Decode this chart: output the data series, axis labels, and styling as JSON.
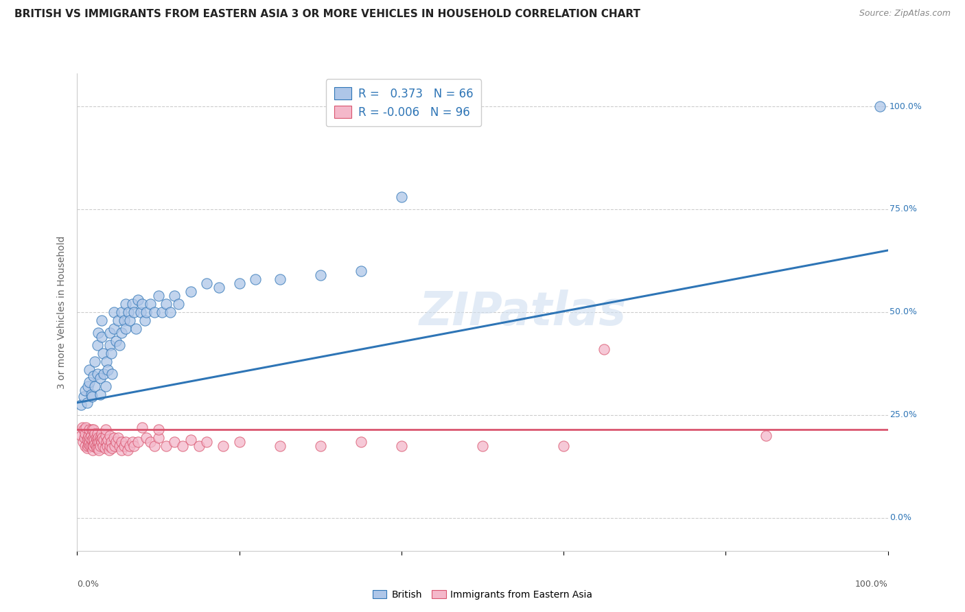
{
  "title": "BRITISH VS IMMIGRANTS FROM EASTERN ASIA 3 OR MORE VEHICLES IN HOUSEHOLD CORRELATION CHART",
  "source": "Source: ZipAtlas.com",
  "ylabel": "3 or more Vehicles in Household",
  "watermark": "ZIPatlas",
  "legend_top": {
    "british": {
      "R": 0.373,
      "N": 66,
      "color": "#aec6e8",
      "line_color": "#2e75b6"
    },
    "eastern_asia": {
      "R": -0.006,
      "N": 96,
      "color": "#f4b8ca",
      "line_color": "#d9546e"
    }
  },
  "ytick_labels": [
    "0.0%",
    "25.0%",
    "50.0%",
    "75.0%",
    "100.0%"
  ],
  "ytick_values": [
    0.0,
    0.25,
    0.5,
    0.75,
    1.0
  ],
  "xlim": [
    0.0,
    1.0
  ],
  "ylim": [
    -0.08,
    1.08
  ],
  "background_color": "#ffffff",
  "grid_color": "#cccccc",
  "title_fontsize": 11,
  "british_scatter": [
    [
      0.005,
      0.275
    ],
    [
      0.008,
      0.295
    ],
    [
      0.01,
      0.31
    ],
    [
      0.012,
      0.28
    ],
    [
      0.013,
      0.32
    ],
    [
      0.015,
      0.36
    ],
    [
      0.015,
      0.33
    ],
    [
      0.017,
      0.3
    ],
    [
      0.018,
      0.295
    ],
    [
      0.02,
      0.345
    ],
    [
      0.022,
      0.38
    ],
    [
      0.022,
      0.32
    ],
    [
      0.025,
      0.35
    ],
    [
      0.025,
      0.42
    ],
    [
      0.026,
      0.45
    ],
    [
      0.028,
      0.34
    ],
    [
      0.028,
      0.3
    ],
    [
      0.03,
      0.48
    ],
    [
      0.03,
      0.44
    ],
    [
      0.032,
      0.4
    ],
    [
      0.033,
      0.35
    ],
    [
      0.035,
      0.32
    ],
    [
      0.036,
      0.38
    ],
    [
      0.038,
      0.36
    ],
    [
      0.04,
      0.45
    ],
    [
      0.04,
      0.42
    ],
    [
      0.042,
      0.4
    ],
    [
      0.043,
      0.35
    ],
    [
      0.045,
      0.5
    ],
    [
      0.045,
      0.46
    ],
    [
      0.048,
      0.43
    ],
    [
      0.05,
      0.48
    ],
    [
      0.052,
      0.42
    ],
    [
      0.055,
      0.5
    ],
    [
      0.055,
      0.45
    ],
    [
      0.058,
      0.48
    ],
    [
      0.06,
      0.52
    ],
    [
      0.06,
      0.46
    ],
    [
      0.063,
      0.5
    ],
    [
      0.065,
      0.48
    ],
    [
      0.068,
      0.52
    ],
    [
      0.07,
      0.5
    ],
    [
      0.072,
      0.46
    ],
    [
      0.075,
      0.53
    ],
    [
      0.078,
      0.5
    ],
    [
      0.08,
      0.52
    ],
    [
      0.083,
      0.48
    ],
    [
      0.085,
      0.5
    ],
    [
      0.09,
      0.52
    ],
    [
      0.095,
      0.5
    ],
    [
      0.1,
      0.54
    ],
    [
      0.105,
      0.5
    ],
    [
      0.11,
      0.52
    ],
    [
      0.115,
      0.5
    ],
    [
      0.12,
      0.54
    ],
    [
      0.125,
      0.52
    ],
    [
      0.14,
      0.55
    ],
    [
      0.16,
      0.57
    ],
    [
      0.175,
      0.56
    ],
    [
      0.2,
      0.57
    ],
    [
      0.22,
      0.58
    ],
    [
      0.25,
      0.58
    ],
    [
      0.3,
      0.59
    ],
    [
      0.35,
      0.6
    ],
    [
      0.4,
      0.78
    ],
    [
      0.99,
      1.0
    ]
  ],
  "eastern_asia_scatter": [
    [
      0.005,
      0.2
    ],
    [
      0.006,
      0.22
    ],
    [
      0.007,
      0.185
    ],
    [
      0.008,
      0.215
    ],
    [
      0.009,
      0.195
    ],
    [
      0.01,
      0.205
    ],
    [
      0.01,
      0.175
    ],
    [
      0.011,
      0.22
    ],
    [
      0.012,
      0.19
    ],
    [
      0.012,
      0.17
    ],
    [
      0.013,
      0.195
    ],
    [
      0.013,
      0.175
    ],
    [
      0.014,
      0.2
    ],
    [
      0.014,
      0.18
    ],
    [
      0.015,
      0.215
    ],
    [
      0.015,
      0.185
    ],
    [
      0.016,
      0.195
    ],
    [
      0.016,
      0.175
    ],
    [
      0.017,
      0.2
    ],
    [
      0.017,
      0.175
    ],
    [
      0.018,
      0.215
    ],
    [
      0.018,
      0.19
    ],
    [
      0.019,
      0.175
    ],
    [
      0.019,
      0.165
    ],
    [
      0.02,
      0.215
    ],
    [
      0.02,
      0.195
    ],
    [
      0.02,
      0.175
    ],
    [
      0.021,
      0.19
    ],
    [
      0.022,
      0.205
    ],
    [
      0.022,
      0.18
    ],
    [
      0.023,
      0.195
    ],
    [
      0.023,
      0.175
    ],
    [
      0.024,
      0.19
    ],
    [
      0.024,
      0.17
    ],
    [
      0.025,
      0.205
    ],
    [
      0.025,
      0.185
    ],
    [
      0.026,
      0.195
    ],
    [
      0.026,
      0.17
    ],
    [
      0.027,
      0.185
    ],
    [
      0.027,
      0.165
    ],
    [
      0.028,
      0.195
    ],
    [
      0.028,
      0.175
    ],
    [
      0.029,
      0.19
    ],
    [
      0.03,
      0.205
    ],
    [
      0.03,
      0.185
    ],
    [
      0.031,
      0.195
    ],
    [
      0.032,
      0.175
    ],
    [
      0.033,
      0.19
    ],
    [
      0.034,
      0.17
    ],
    [
      0.035,
      0.2
    ],
    [
      0.035,
      0.215
    ],
    [
      0.036,
      0.185
    ],
    [
      0.037,
      0.175
    ],
    [
      0.038,
      0.19
    ],
    [
      0.039,
      0.165
    ],
    [
      0.04,
      0.2
    ],
    [
      0.04,
      0.175
    ],
    [
      0.042,
      0.185
    ],
    [
      0.043,
      0.17
    ],
    [
      0.045,
      0.195
    ],
    [
      0.046,
      0.175
    ],
    [
      0.048,
      0.185
    ],
    [
      0.05,
      0.195
    ],
    [
      0.052,
      0.175
    ],
    [
      0.055,
      0.185
    ],
    [
      0.055,
      0.165
    ],
    [
      0.058,
      0.175
    ],
    [
      0.06,
      0.185
    ],
    [
      0.062,
      0.165
    ],
    [
      0.065,
      0.175
    ],
    [
      0.068,
      0.185
    ],
    [
      0.07,
      0.175
    ],
    [
      0.075,
      0.185
    ],
    [
      0.08,
      0.22
    ],
    [
      0.085,
      0.195
    ],
    [
      0.09,
      0.185
    ],
    [
      0.095,
      0.175
    ],
    [
      0.1,
      0.195
    ],
    [
      0.1,
      0.215
    ],
    [
      0.11,
      0.175
    ],
    [
      0.12,
      0.185
    ],
    [
      0.13,
      0.175
    ],
    [
      0.14,
      0.19
    ],
    [
      0.15,
      0.175
    ],
    [
      0.16,
      0.185
    ],
    [
      0.18,
      0.175
    ],
    [
      0.2,
      0.185
    ],
    [
      0.25,
      0.175
    ],
    [
      0.3,
      0.175
    ],
    [
      0.35,
      0.185
    ],
    [
      0.4,
      0.175
    ],
    [
      0.5,
      0.175
    ],
    [
      0.6,
      0.175
    ],
    [
      0.65,
      0.41
    ],
    [
      0.85,
      0.2
    ]
  ],
  "british_line": {
    "x0": 0.0,
    "y0": 0.28,
    "x1": 1.0,
    "y1": 0.65
  },
  "eastern_asia_line": {
    "x0": 0.0,
    "y0": 0.215,
    "x1": 1.0,
    "y1": 0.215
  }
}
